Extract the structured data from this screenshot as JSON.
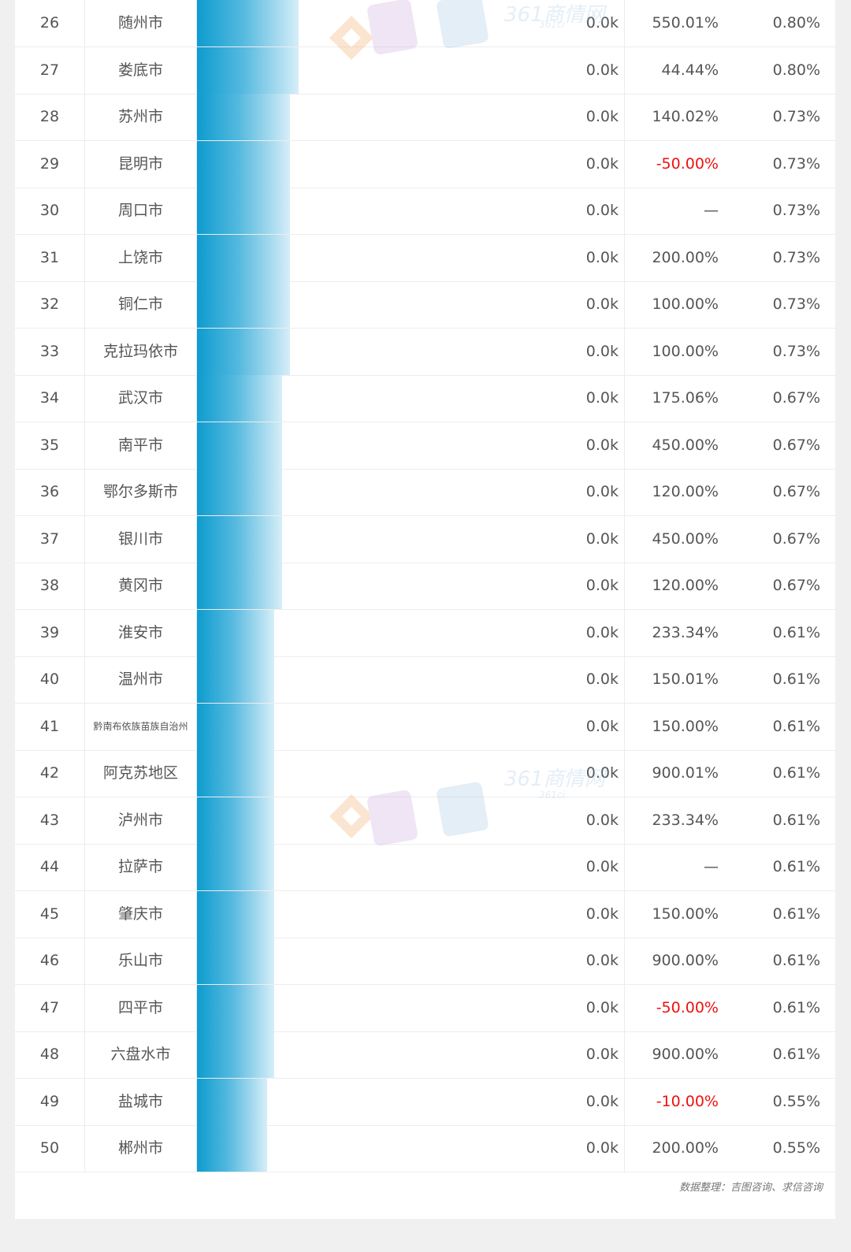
{
  "table": {
    "rows": [
      {
        "rank": "26",
        "city": "随州市",
        "value": "0.0k",
        "growth": "550.01%",
        "share": "0.80%"
      },
      {
        "rank": "27",
        "city": "娄底市",
        "value": "0.0k",
        "growth": "44.44%",
        "share": "0.80%"
      },
      {
        "rank": "28",
        "city": "苏州市",
        "value": "0.0k",
        "growth": "140.02%",
        "share": "0.73%"
      },
      {
        "rank": "29",
        "city": "昆明市",
        "value": "0.0k",
        "growth": "-50.00%",
        "share": "0.73%"
      },
      {
        "rank": "30",
        "city": "周口市",
        "value": "0.0k",
        "growth": "—",
        "share": "0.73%"
      },
      {
        "rank": "31",
        "city": "上饶市",
        "value": "0.0k",
        "growth": "200.00%",
        "share": "0.73%"
      },
      {
        "rank": "32",
        "city": "铜仁市",
        "value": "0.0k",
        "growth": "100.00%",
        "share": "0.73%"
      },
      {
        "rank": "33",
        "city": "克拉玛依市",
        "value": "0.0k",
        "growth": "100.00%",
        "share": "0.73%"
      },
      {
        "rank": "34",
        "city": "武汉市",
        "value": "0.0k",
        "growth": "175.06%",
        "share": "0.67%"
      },
      {
        "rank": "35",
        "city": "南平市",
        "value": "0.0k",
        "growth": "450.00%",
        "share": "0.67%"
      },
      {
        "rank": "36",
        "city": "鄂尔多斯市",
        "value": "0.0k",
        "growth": "120.00%",
        "share": "0.67%"
      },
      {
        "rank": "37",
        "city": "银川市",
        "value": "0.0k",
        "growth": "450.00%",
        "share": "0.67%"
      },
      {
        "rank": "38",
        "city": "黄冈市",
        "value": "0.0k",
        "growth": "120.00%",
        "share": "0.67%"
      },
      {
        "rank": "39",
        "city": "淮安市",
        "value": "0.0k",
        "growth": "233.34%",
        "share": "0.61%"
      },
      {
        "rank": "40",
        "city": "温州市",
        "value": "0.0k",
        "growth": "150.01%",
        "share": "0.61%"
      },
      {
        "rank": "41",
        "city": "黔南布依族苗族自治州",
        "value": "0.0k",
        "growth": "150.00%",
        "share": "0.61%"
      },
      {
        "rank": "42",
        "city": "阿克苏地区",
        "value": "0.0k",
        "growth": "900.01%",
        "share": "0.61%"
      },
      {
        "rank": "43",
        "city": "泸州市",
        "value": "0.0k",
        "growth": "233.34%",
        "share": "0.61%"
      },
      {
        "rank": "44",
        "city": "拉萨市",
        "value": "0.0k",
        "growth": "—",
        "share": "0.61%"
      },
      {
        "rank": "45",
        "city": "肇庆市",
        "value": "0.0k",
        "growth": "150.00%",
        "share": "0.61%"
      },
      {
        "rank": "46",
        "city": "乐山市",
        "value": "0.0k",
        "growth": "900.00%",
        "share": "0.61%"
      },
      {
        "rank": "47",
        "city": "四平市",
        "value": "0.0k",
        "growth": "-50.00%",
        "share": "0.61%"
      },
      {
        "rank": "48",
        "city": "六盘水市",
        "value": "0.0k",
        "growth": "900.00%",
        "share": "0.61%"
      },
      {
        "rank": "49",
        "city": "盐城市",
        "value": "0.0k",
        "growth": "-10.00%",
        "share": "0.55%"
      },
      {
        "rank": "50",
        "city": "郴州市",
        "value": "0.0k",
        "growth": "200.00%",
        "share": "0.55%"
      }
    ]
  },
  "chart_data": {
    "type": "bar",
    "categories": [
      "随州市",
      "娄底市",
      "苏州市",
      "昆明市",
      "周口市",
      "上饶市",
      "铜仁市",
      "克拉玛依市",
      "武汉市",
      "南平市",
      "鄂尔多斯市",
      "银川市",
      "黄冈市",
      "淮安市",
      "温州市",
      "黔南布依族苗族自治州",
      "阿克苏地区",
      "泸州市",
      "拉萨市",
      "肇庆市",
      "乐山市",
      "四平市",
      "六盘水市",
      "盐城市",
      "郴州市"
    ],
    "values": [
      0.8,
      0.8,
      0.73,
      0.73,
      0.73,
      0.73,
      0.73,
      0.73,
      0.67,
      0.67,
      0.67,
      0.67,
      0.67,
      0.61,
      0.61,
      0.61,
      0.61,
      0.61,
      0.61,
      0.61,
      0.61,
      0.61,
      0.61,
      0.55,
      0.55
    ],
    "orientation": "horizontal"
  },
  "source_text": "数据整理：吉图咨询、求信咨询",
  "watermark_text": "361商情网",
  "watermark_sub": "361ci",
  "colors": {
    "negative": "#ee1010",
    "bar_start": "#0d9ccf",
    "bar_end": "#d6eef8",
    "text": "#555555",
    "background": "#f0f0f0"
  }
}
